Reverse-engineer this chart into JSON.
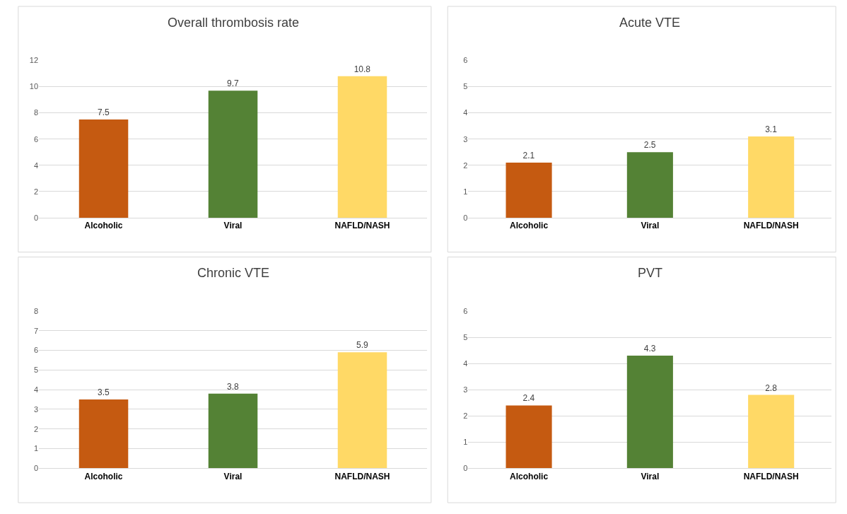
{
  "chart_data": [
    {
      "type": "bar",
      "title": "Overall thrombosis rate",
      "categories": [
        "Alcoholic",
        "Viral",
        "NAFLD/NASH"
      ],
      "values": [
        7.5,
        9.7,
        10.8
      ],
      "colors": [
        "#c55a11",
        "#548235",
        "#ffd966"
      ],
      "ylim": [
        0,
        12
      ],
      "yticks": [
        0,
        2,
        4,
        6,
        8,
        10,
        12
      ],
      "grid": "y",
      "data_labels": true
    },
    {
      "type": "bar",
      "title": "Acute VTE",
      "categories": [
        "Alcoholic",
        "Viral",
        "NAFLD/NASH"
      ],
      "values": [
        2.1,
        2.5,
        3.1
      ],
      "colors": [
        "#c55a11",
        "#548235",
        "#ffd966"
      ],
      "ylim": [
        0,
        6
      ],
      "yticks": [
        0,
        1,
        2,
        3,
        4,
        5,
        6
      ],
      "grid": "y",
      "data_labels": true
    },
    {
      "type": "bar",
      "title": "Chronic VTE",
      "categories": [
        "Alcoholic",
        "Viral",
        "NAFLD/NASH"
      ],
      "values": [
        3.5,
        3.8,
        5.9
      ],
      "colors": [
        "#c55a11",
        "#548235",
        "#ffd966"
      ],
      "ylim": [
        0,
        8
      ],
      "yticks": [
        0,
        1,
        2,
        3,
        4,
        5,
        6,
        7,
        8
      ],
      "grid": "y",
      "data_labels": true
    },
    {
      "type": "bar",
      "title": "PVT",
      "categories": [
        "Alcoholic",
        "Viral",
        "NAFLD/NASH"
      ],
      "values": [
        2.4,
        4.3,
        2.8
      ],
      "colors": [
        "#c55a11",
        "#548235",
        "#ffd966"
      ],
      "ylim": [
        0,
        6
      ],
      "yticks": [
        0,
        1,
        2,
        3,
        4,
        5,
        6
      ],
      "grid": "y",
      "data_labels": true
    }
  ]
}
